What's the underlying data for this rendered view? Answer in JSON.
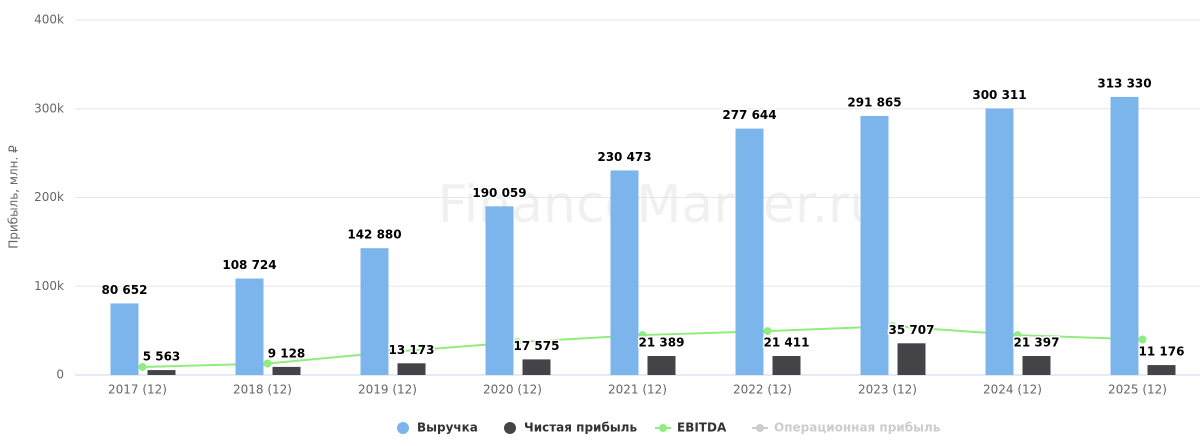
{
  "chart_data": {
    "type": "bar",
    "watermark": "FinanceMarker.ru",
    "y_label": "Прибыль, млн. ₽",
    "categories": [
      "2017 (12)",
      "2018 (12)",
      "2019 (12)",
      "2020 (12)",
      "2021 (12)",
      "2022 (12)",
      "2023 (12)",
      "2024 (12)",
      "2025 (12)"
    ],
    "ylim": [
      0,
      400000
    ],
    "yticks": [
      {
        "value": 0,
        "label": "0"
      },
      {
        "value": 100000,
        "label": "100k"
      },
      {
        "value": 200000,
        "label": "200k"
      },
      {
        "value": 300000,
        "label": "300k"
      },
      {
        "value": 400000,
        "label": "400k"
      }
    ],
    "grid": true,
    "legend": "bottom",
    "series": [
      {
        "name": "Выручка",
        "type": "bar",
        "color": "#7cb5ec",
        "values": [
          80652,
          108724,
          142880,
          190059,
          230473,
          277644,
          291865,
          300311,
          313330
        ],
        "value_labels": [
          "80 652",
          "108 724",
          "142 880",
          "190 059",
          "230 473",
          "277 644",
          "291 865",
          "300 311",
          "313 330"
        ]
      },
      {
        "name": "Чистая прибыль",
        "type": "bar",
        "color": "#434348",
        "values": [
          5563,
          9128,
          13173,
          17575,
          21389,
          21411,
          35707,
          21397,
          11176
        ],
        "value_labels": [
          "5 563",
          "9 128",
          "13 173",
          "17 575",
          "21 389",
          "21 411",
          "35 707",
          "21 397",
          "11 176"
        ]
      },
      {
        "name": "EBITDA",
        "type": "line",
        "color": "#90ed7d",
        "values": [
          9000,
          13000,
          26000,
          37000,
          45000,
          49500,
          55000,
          45000,
          40000
        ]
      },
      {
        "name": "Операционная прибыль",
        "type": "line",
        "color": "#cccccc",
        "visible": false,
        "values": [
          null,
          null,
          null,
          null,
          null,
          null,
          null,
          null,
          null
        ]
      }
    ]
  }
}
